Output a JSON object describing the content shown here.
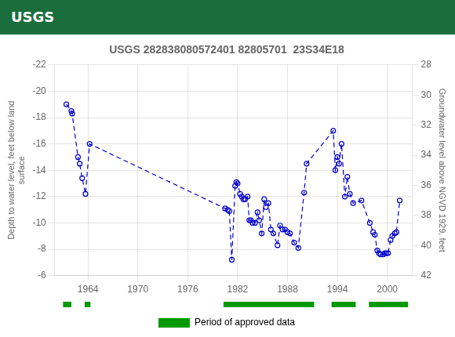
{
  "chart_data": {
    "type": "line",
    "title": "USGS 282838080572401 82805701  23S34E18",
    "annotations": [
      "USGS"
    ],
    "y_label": "Depth to water level, feet below land\nsurface",
    "y2_label": "Groundwater level above NGVD 1929, feet",
    "x": [
      1961.4,
      1962.0,
      1962.1,
      1962.8,
      1963.0,
      1963.3,
      1963.7,
      1964.2,
      1980.5,
      1980.8,
      1981.0,
      1981.3,
      1981.7,
      1981.85,
      1982.0,
      1982.3,
      1982.5,
      1982.7,
      1982.9,
      1983.2,
      1983.4,
      1983.6,
      1983.8,
      1984.1,
      1984.4,
      1984.6,
      1984.9,
      1985.2,
      1985.4,
      1985.7,
      1986.0,
      1986.3,
      1986.8,
      1987.1,
      1987.4,
      1987.7,
      1988.0,
      1988.3,
      1988.8,
      1989.3,
      1990.0,
      1990.3,
      1993.5,
      1993.75,
      1994.0,
      1994.2,
      1994.5,
      1994.9,
      1995.2,
      1995.5,
      1995.9,
      1996.9,
      1997.9,
      1998.3,
      1998.5,
      1998.8,
      1999.0,
      1999.2,
      1999.5,
      1999.7,
      1999.9,
      2000.1,
      2000.4,
      2000.6,
      2000.9,
      2001.1,
      2001.5
    ],
    "values": [
      -19.0,
      -18.5,
      -18.3,
      -15.0,
      -14.5,
      -13.4,
      -12.2,
      -16.0,
      -11.1,
      -11.0,
      -10.9,
      -7.2,
      -12.8,
      -13.1,
      -13.0,
      -12.2,
      -12.0,
      -11.8,
      -11.8,
      -12.0,
      -10.2,
      -10.2,
      -10.0,
      -10.0,
      -10.8,
      -10.2,
      -9.2,
      -11.8,
      -11.2,
      -11.5,
      -9.5,
      -9.2,
      -8.3,
      -9.8,
      -9.5,
      -9.5,
      -9.3,
      -9.2,
      -8.5,
      -8.1,
      -12.3,
      -14.5,
      -17.0,
      -14.0,
      -15.0,
      -14.5,
      -16.0,
      -12.0,
      -13.5,
      -12.2,
      -11.5,
      -11.7,
      -10.0,
      -9.3,
      -9.1,
      -7.9,
      -7.7,
      -7.6,
      -7.6,
      -7.7,
      -7.7,
      -7.7,
      -8.7,
      -9.0,
      -9.2,
      -9.3,
      -11.7
    ],
    "color": "#0000cc",
    "marker": "circle",
    "line_style": "dashed",
    "approved_periods": {
      "name": "Period of approved data",
      "color": "#009900",
      "ranges": [
        [
          1961.0,
          1962.0
        ],
        [
          1963.6,
          1964.3
        ],
        [
          1980.3,
          1991.2
        ],
        [
          1993.3,
          1996.2
        ],
        [
          1997.8,
          2002.5
        ]
      ]
    },
    "xlim": [
      1960.0,
      2003.0
    ],
    "xticks": [
      1964,
      1970,
      1976,
      1982,
      1988,
      1994,
      2000
    ],
    "ylim": [
      -6,
      -22
    ],
    "yticks": [
      -22,
      -20,
      -18,
      -16,
      -14,
      -12,
      -10,
      -8,
      -6
    ],
    "y2lim": [
      42,
      28
    ],
    "y2ticks": [
      42,
      40,
      38,
      36,
      34,
      32,
      30,
      28
    ],
    "grid": true,
    "legend": "bottom"
  }
}
